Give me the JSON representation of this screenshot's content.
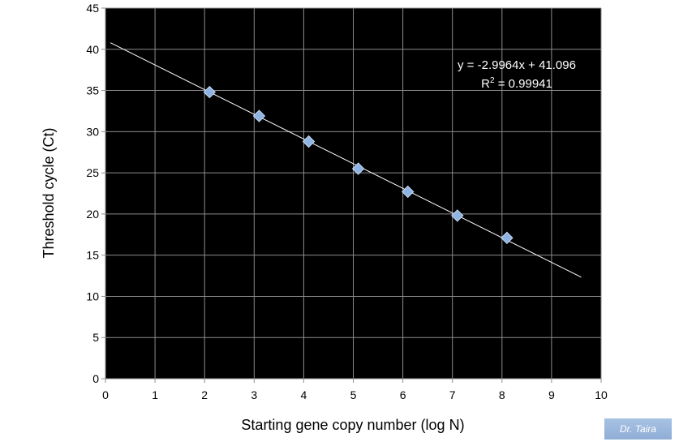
{
  "chart_data": {
    "type": "scatter",
    "xlabel": "Starting gene copy number (log N)",
    "ylabel": "Threshold cycle (Ct)",
    "xlim": [
      0,
      10
    ],
    "ylim": [
      0,
      45
    ],
    "x_ticks": [
      0,
      1,
      2,
      3,
      4,
      5,
      6,
      7,
      8,
      9,
      10
    ],
    "y_ticks": [
      0,
      5,
      10,
      15,
      20,
      25,
      30,
      35,
      40,
      45
    ],
    "grid": true,
    "series": [
      {
        "x": [
          2.1,
          3.1,
          4.1,
          5.1,
          6.1,
          7.1,
          8.1
        ],
        "y": [
          34.8,
          31.9,
          28.8,
          25.5,
          22.7,
          19.8,
          17.1
        ]
      }
    ],
    "trendline": {
      "slope": -2.9964,
      "intercept": 41.096,
      "x_range": [
        0.1,
        9.6
      ],
      "equation_label": "y = -2.9964x + 41.096",
      "r2_prefix": "R",
      "r2_superscript": "2",
      "r2_suffix": " = 0.99941"
    },
    "colors": {
      "plot_background": "#000000",
      "gridline": "#8c8c8c",
      "marker_fill": "#8fb4e3",
      "marker_stroke": "#c6dbf4",
      "trendline": "#ffffff"
    }
  },
  "watermark": {
    "text": "Dr. Taira"
  }
}
